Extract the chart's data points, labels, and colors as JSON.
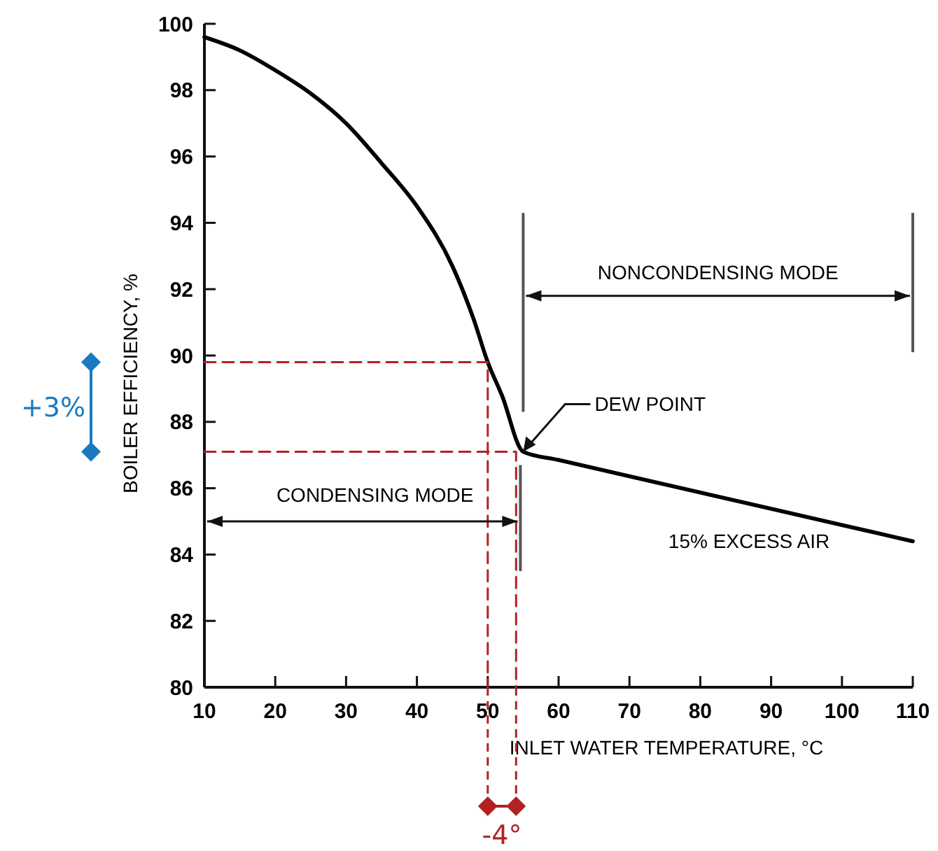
{
  "chart_data": {
    "type": "line",
    "xlabel": "INLET WATER TEMPERATURE, °C",
    "ylabel": "BOILER EFFICIENCY, %",
    "x": [
      10,
      15,
      20,
      25,
      30,
      35,
      40,
      45,
      48,
      50,
      52,
      55,
      60,
      80,
      100,
      110
    ],
    "series": [
      {
        "color": "#000000",
        "values": [
          99.6,
          99.2,
          98.6,
          97.9,
          97.0,
          95.8,
          94.5,
          92.7,
          91.1,
          89.8,
          88.8,
          87.1,
          86.85,
          85.87,
          84.89,
          84.4
        ]
      },
      {
        "color": "#b22222",
        "line_style": "dashed",
        "x": [
          10,
          50,
          50
        ],
        "values": [
          89.8,
          89.8,
          80
        ]
      },
      {
        "color": "#b22222",
        "line_style": "dashed",
        "x": [
          10,
          54,
          54
        ],
        "values": [
          87.1,
          87.1,
          80
        ]
      }
    ],
    "xlim": [
      10,
      110
    ],
    "xticks": [
      10,
      20,
      30,
      40,
      50,
      60,
      70,
      80,
      90,
      100,
      110
    ],
    "ylim": [
      80,
      100
    ],
    "yticks": [
      80,
      82,
      84,
      86,
      88,
      90,
      92,
      94,
      96,
      98,
      100
    ],
    "grid": false,
    "marker": "none",
    "line_style": "solid",
    "annotations": [
      "NONCONDENSING MODE",
      "CONDENSING MODE",
      {
        "text": "DEW POINT",
        "x": 55,
        "y": 87.1
      },
      "15% EXCESS AIR",
      "+3%",
      "-4°"
    ]
  }
}
